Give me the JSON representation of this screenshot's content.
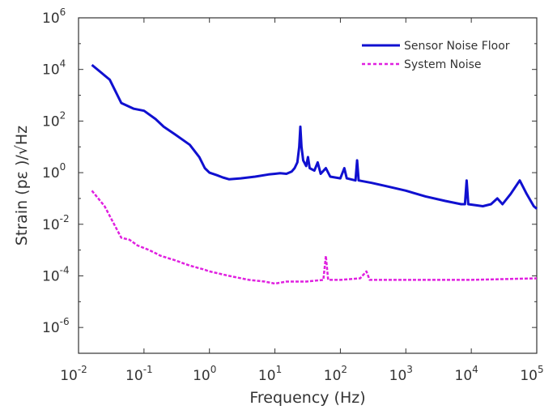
{
  "chart_data": {
    "type": "line",
    "title": "",
    "xlabel": "Frequency (Hz)",
    "ylabel": "Strain (pε )/√Hz",
    "x_scale": "log",
    "y_scale": "log",
    "xlim": [
      0.01,
      100000
    ],
    "ylim": [
      1e-07,
      1000000
    ],
    "grid": false,
    "legend_position": "top-right",
    "x_ticks": [
      {
        "value": 0.01,
        "base": "10",
        "exp": "-2"
      },
      {
        "value": 0.1,
        "base": "10",
        "exp": "-1"
      },
      {
        "value": 1,
        "base": "10",
        "exp": "0"
      },
      {
        "value": 10,
        "base": "10",
        "exp": "1"
      },
      {
        "value": 100,
        "base": "10",
        "exp": "2"
      },
      {
        "value": 1000,
        "base": "10",
        "exp": "3"
      },
      {
        "value": 10000,
        "base": "10",
        "exp": "4"
      },
      {
        "value": 100000,
        "base": "10",
        "exp": "5"
      }
    ],
    "y_ticks": [
      {
        "value": 1e-06,
        "base": "10",
        "exp": "-6"
      },
      {
        "value": 0.0001,
        "base": "10",
        "exp": "-4"
      },
      {
        "value": 0.01,
        "base": "10",
        "exp": "-2"
      },
      {
        "value": 1,
        "base": "10",
        "exp": "0"
      },
      {
        "value": 100,
        "base": "10",
        "exp": "2"
      },
      {
        "value": 10000,
        "base": "10",
        "exp": "4"
      },
      {
        "value": 1000000,
        "base": "10",
        "exp": "6"
      }
    ],
    "series": [
      {
        "name": "Sensor Noise Floor",
        "color": "#1010d0",
        "style": "solid",
        "points": [
          [
            0.016,
            15000
          ],
          [
            0.03,
            4000
          ],
          [
            0.045,
            500
          ],
          [
            0.07,
            300
          ],
          [
            0.1,
            250
          ],
          [
            0.15,
            120
          ],
          [
            0.2,
            60
          ],
          [
            0.3,
            30
          ],
          [
            0.5,
            12
          ],
          [
            0.7,
            4
          ],
          [
            0.85,
            1.5
          ],
          [
            1.0,
            1.0
          ],
          [
            1.3,
            0.8
          ],
          [
            1.6,
            0.65
          ],
          [
            2.0,
            0.55
          ],
          [
            3.0,
            0.6
          ],
          [
            5.0,
            0.7
          ],
          [
            8.0,
            0.85
          ],
          [
            10.0,
            0.9
          ],
          [
            12.0,
            0.95
          ],
          [
            15.0,
            0.9
          ],
          [
            18.0,
            1.1
          ],
          [
            20.0,
            1.5
          ],
          [
            22.0,
            2.5
          ],
          [
            23.5,
            10
          ],
          [
            24.5,
            60
          ],
          [
            25.5,
            10
          ],
          [
            27.0,
            3
          ],
          [
            30.0,
            1.8
          ],
          [
            32.0,
            4
          ],
          [
            34.0,
            1.5
          ],
          [
            40.0,
            1.2
          ],
          [
            45.0,
            2.5
          ],
          [
            50.0,
            0.9
          ],
          [
            60.0,
            1.5
          ],
          [
            70.0,
            0.7
          ],
          [
            100.0,
            0.6
          ],
          [
            115.0,
            1.5
          ],
          [
            125.0,
            0.6
          ],
          [
            170.0,
            0.5
          ],
          [
            180.0,
            3
          ],
          [
            190.0,
            0.5
          ],
          [
            300.0,
            0.4
          ],
          [
            500.0,
            0.3
          ],
          [
            1000.0,
            0.2
          ],
          [
            2000.0,
            0.12
          ],
          [
            4000.0,
            0.08
          ],
          [
            7000.0,
            0.06
          ],
          [
            8000.0,
            0.06
          ],
          [
            8500.0,
            0.5
          ],
          [
            9000.0,
            0.06
          ],
          [
            15000.0,
            0.05
          ],
          [
            20000.0,
            0.06
          ],
          [
            25000.0,
            0.1
          ],
          [
            30000.0,
            0.06
          ],
          [
            40000.0,
            0.15
          ],
          [
            55000.0,
            0.5
          ],
          [
            70000.0,
            0.15
          ],
          [
            90000.0,
            0.05
          ],
          [
            100000.0,
            0.04
          ]
        ]
      },
      {
        "name": "System Noise",
        "color": "#e020e0",
        "style": "dashed",
        "points": [
          [
            0.016,
            0.2
          ],
          [
            0.025,
            0.05
          ],
          [
            0.035,
            0.01
          ],
          [
            0.045,
            0.003
          ],
          [
            0.06,
            0.0025
          ],
          [
            0.08,
            0.0015
          ],
          [
            0.12,
            0.001
          ],
          [
            0.18,
            0.0006
          ],
          [
            0.3,
            0.0004
          ],
          [
            0.5,
            0.00025
          ],
          [
            0.8,
            0.00018
          ],
          [
            1.0,
            0.00015
          ],
          [
            2.0,
            0.0001
          ],
          [
            4.0,
            7e-05
          ],
          [
            7.0,
            6e-05
          ],
          [
            10.0,
            5e-05
          ],
          [
            15.0,
            6e-05
          ],
          [
            30.0,
            6e-05
          ],
          [
            55.0,
            7e-05
          ],
          [
            60.0,
            0.0006
          ],
          [
            65.0,
            7e-05
          ],
          [
            100.0,
            7e-05
          ],
          [
            200.0,
            8e-05
          ],
          [
            250.0,
            0.00015
          ],
          [
            280.0,
            7e-05
          ],
          [
            500.0,
            7e-05
          ],
          [
            1000.0,
            7e-05
          ],
          [
            10000.0,
            7e-05
          ],
          [
            100000.0,
            8e-05
          ]
        ]
      }
    ]
  }
}
